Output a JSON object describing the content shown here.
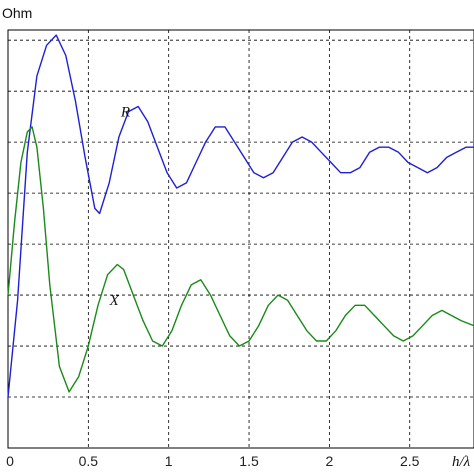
{
  "chart_data": {
    "type": "line",
    "ylabel": "Ohm",
    "xlabel": "h/λ",
    "xlim": [
      0,
      2.9
    ],
    "ylim": [
      0,
      8.2
    ],
    "grid": true,
    "grid_style": "dashed",
    "x_ticks": [
      "0",
      "0.5",
      "1",
      "1.5",
      "2",
      "2.5"
    ],
    "x_tick_values": [
      0,
      0.5,
      1,
      1.5,
      2,
      2.5
    ],
    "series": [
      {
        "name": "R",
        "color": "#1f1fd6",
        "x": [
          0.0,
          0.06,
          0.12,
          0.18,
          0.24,
          0.3,
          0.36,
          0.42,
          0.48,
          0.54,
          0.57,
          0.63,
          0.69,
          0.75,
          0.81,
          0.87,
          0.93,
          0.99,
          1.05,
          1.11,
          1.17,
          1.23,
          1.29,
          1.35,
          1.41,
          1.47,
          1.53,
          1.59,
          1.65,
          1.71,
          1.77,
          1.83,
          1.89,
          1.95,
          2.01,
          2.07,
          2.13,
          2.19,
          2.25,
          2.31,
          2.37,
          2.43,
          2.49,
          2.55,
          2.61,
          2.67,
          2.73,
          2.79,
          2.85,
          2.9
        ],
        "values": [
          1.0,
          2.9,
          5.8,
          7.3,
          7.9,
          8.1,
          7.7,
          6.8,
          5.7,
          4.7,
          4.6,
          5.2,
          6.1,
          6.6,
          6.7,
          6.4,
          5.9,
          5.4,
          5.1,
          5.2,
          5.6,
          6.0,
          6.3,
          6.3,
          6.0,
          5.7,
          5.4,
          5.3,
          5.4,
          5.7,
          6.0,
          6.1,
          6.0,
          5.8,
          5.6,
          5.4,
          5.4,
          5.5,
          5.8,
          5.9,
          5.9,
          5.8,
          5.6,
          5.5,
          5.4,
          5.5,
          5.7,
          5.8,
          5.9,
          5.9
        ]
      },
      {
        "name": "X",
        "color": "#1a8a1a",
        "x": [
          0.0,
          0.04,
          0.08,
          0.12,
          0.15,
          0.18,
          0.22,
          0.26,
          0.32,
          0.38,
          0.44,
          0.5,
          0.56,
          0.62,
          0.68,
          0.72,
          0.78,
          0.84,
          0.9,
          0.96,
          1.02,
          1.08,
          1.14,
          1.2,
          1.26,
          1.32,
          1.38,
          1.44,
          1.5,
          1.56,
          1.62,
          1.68,
          1.74,
          1.8,
          1.86,
          1.92,
          1.98,
          2.04,
          2.1,
          2.16,
          2.22,
          2.28,
          2.34,
          2.4,
          2.46,
          2.52,
          2.58,
          2.64,
          2.7,
          2.76,
          2.82,
          2.9
        ],
        "values": [
          3.0,
          4.4,
          5.6,
          6.2,
          6.3,
          5.9,
          4.7,
          3.2,
          1.6,
          1.1,
          1.4,
          2.0,
          2.8,
          3.4,
          3.6,
          3.5,
          3.0,
          2.5,
          2.1,
          2.0,
          2.3,
          2.8,
          3.2,
          3.3,
          3.0,
          2.6,
          2.2,
          2.0,
          2.1,
          2.4,
          2.8,
          3.0,
          2.9,
          2.6,
          2.3,
          2.1,
          2.1,
          2.3,
          2.6,
          2.8,
          2.8,
          2.6,
          2.4,
          2.2,
          2.1,
          2.2,
          2.4,
          2.6,
          2.7,
          2.6,
          2.5,
          2.4
        ]
      }
    ],
    "annotations": [
      {
        "text": "R",
        "x": 0.69,
        "y": 6.6
      },
      {
        "text": "X",
        "x": 0.62,
        "y": 2.9
      }
    ]
  }
}
